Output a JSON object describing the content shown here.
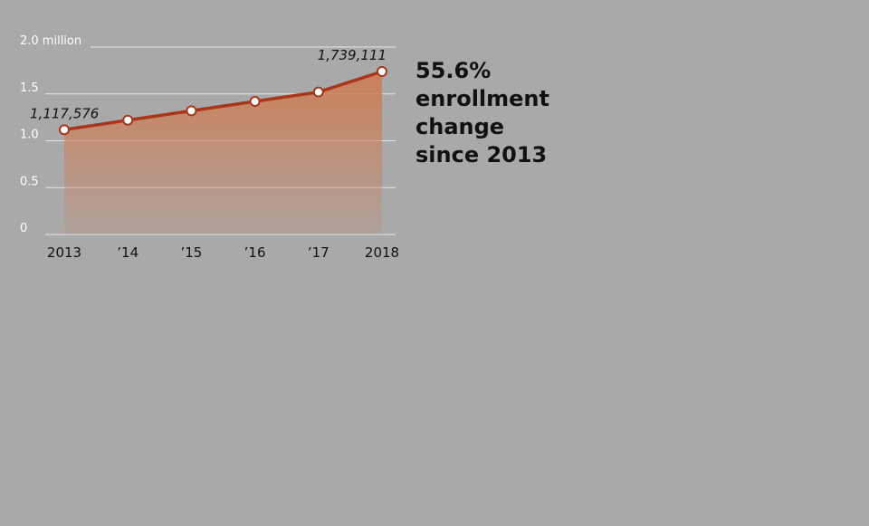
{
  "chart_data": {
    "type": "area",
    "categories": [
      "2013",
      "’14",
      "’15",
      "’16",
      "’17",
      "2018"
    ],
    "values": [
      1.117576,
      1.22,
      1.32,
      1.42,
      1.52,
      1.739111
    ],
    "value_labels": [
      "1,117,576",
      null,
      null,
      null,
      null,
      "1,739,111"
    ],
    "color": "#a8361b",
    "ylim": [
      0,
      2
    ],
    "yticks": [
      0,
      0.5,
      {
        "value": 1,
        "label": "1.0"
      },
      1.5,
      {
        "value": 2,
        "label": "2.0 million"
      }
    ],
    "grid": true,
    "annotation": [
      "55.6%",
      "enrollment",
      "change",
      "since 2013"
    ]
  }
}
